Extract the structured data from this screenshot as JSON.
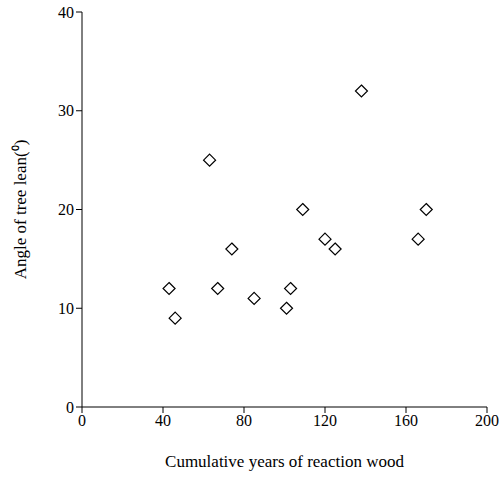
{
  "chart_data": {
    "type": "scatter",
    "x_label": "Cumulative years of reaction wood",
    "y_label": "Angle of tree lean(⁰)",
    "x": [
      43,
      46,
      63,
      67,
      74,
      85,
      101,
      103,
      109,
      120,
      125,
      138,
      166,
      170
    ],
    "values": [
      12,
      9,
      25,
      12,
      16,
      11,
      10,
      12,
      20,
      17,
      16,
      32,
      17,
      20
    ],
    "color": "#000000",
    "marker": "diamond",
    "xlim": [
      0,
      200
    ],
    "xticks": [
      0,
      40,
      80,
      120,
      160,
      200
    ],
    "ylim": [
      0,
      40
    ],
    "yticks": [
      0,
      10,
      20,
      30,
      40
    ],
    "grid": false
  }
}
